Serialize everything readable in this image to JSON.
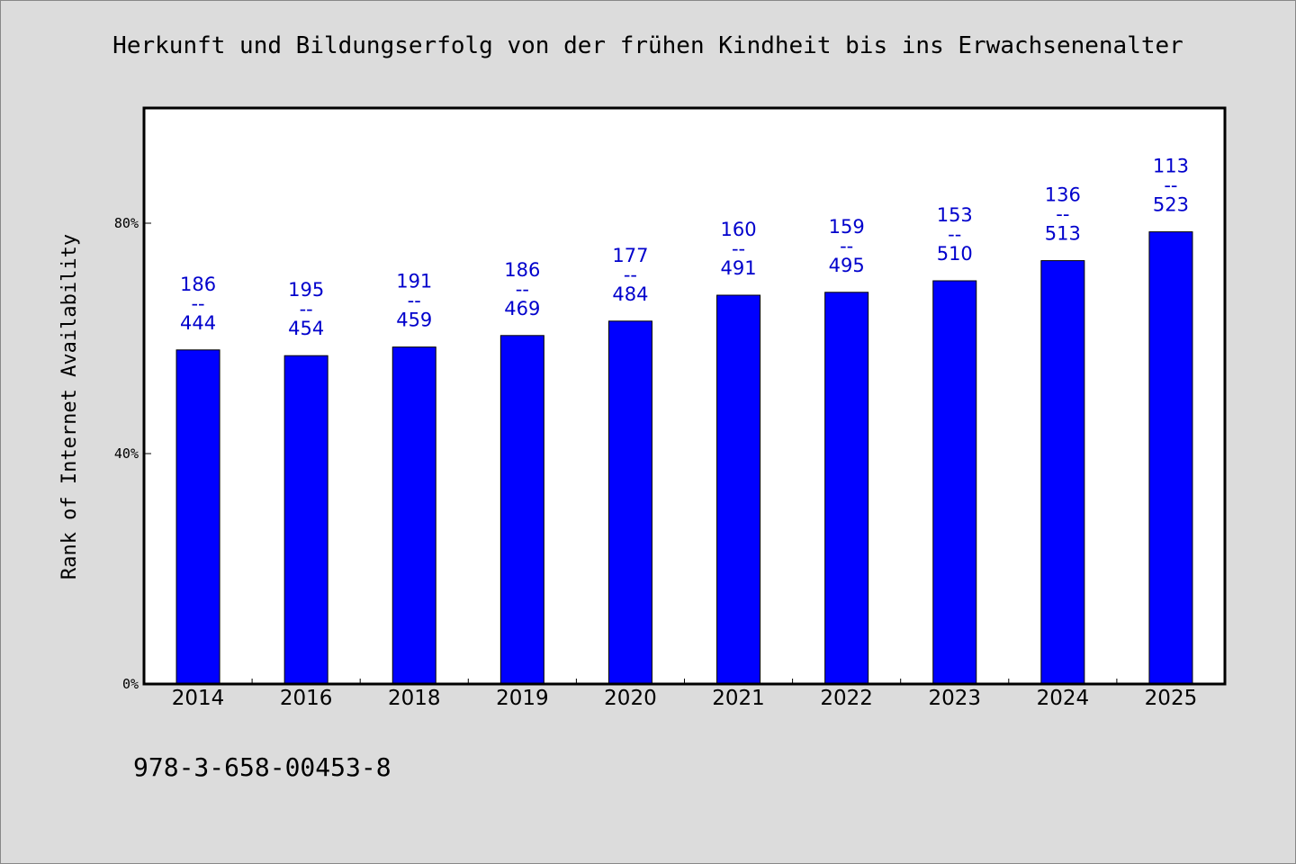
{
  "footer_code": "978-3-658-00453-8",
  "colors": {
    "bar": "#0000ff",
    "bar_label": "#0000cc",
    "background": "#dcdcdc",
    "plot_background": "#ffffff"
  },
  "chart_data": {
    "type": "bar",
    "title": "Herkunft und Bildungserfolg von der frühen Kindheit bis ins Erwachsenenalter",
    "xlabel": "",
    "ylabel": "Rank of Internet Availability",
    "ylim": [
      0,
      100
    ],
    "yticks": [
      {
        "value": 0,
        "label": "0%"
      },
      {
        "value": 40,
        "label": "40%"
      },
      {
        "value": 80,
        "label": "80%"
      }
    ],
    "grid": false,
    "categories": [
      "2014",
      "2016",
      "2018",
      "2019",
      "2020",
      "2021",
      "2022",
      "2023",
      "2024",
      "2025"
    ],
    "values": [
      58,
      57,
      58.5,
      60.5,
      63,
      67.5,
      68,
      70,
      73.5,
      78.5
    ],
    "data_labels": [
      [
        "186",
        "444"
      ],
      [
        "195",
        "454"
      ],
      [
        "191",
        "459"
      ],
      [
        "186",
        "469"
      ],
      [
        "177",
        "484"
      ],
      [
        "160",
        "491"
      ],
      [
        "159",
        "495"
      ],
      [
        "153",
        "510"
      ],
      [
        "136",
        "513"
      ],
      [
        "113",
        "523"
      ]
    ],
    "label_separator": "--"
  }
}
